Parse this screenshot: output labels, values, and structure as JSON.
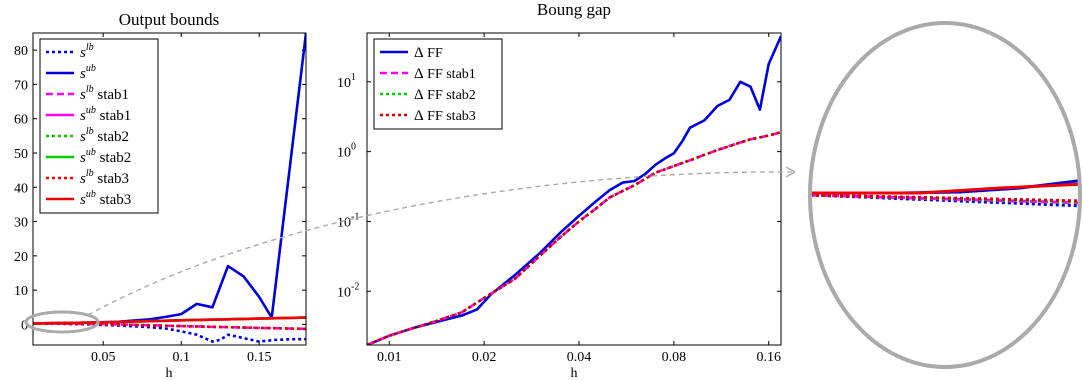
{
  "chart_data": [
    {
      "type": "line",
      "title": "Output bounds",
      "xlabel": "h",
      "ylabel": "",
      "xlim": [
        0.005,
        0.18
      ],
      "ylim": [
        -6,
        85
      ],
      "xticks": [
        0.05,
        0.1,
        0.15
      ],
      "xtick_labels": [
        "0.05",
        "0.1",
        "0.15"
      ],
      "yticks": [
        0,
        10,
        20,
        30,
        40,
        50,
        60,
        70,
        80
      ],
      "ytick_labels": [
        "0",
        "10",
        "20",
        "30",
        "40",
        "50",
        "60",
        "70",
        "80"
      ],
      "legend_position": "top-left",
      "legend": [
        {
          "base": "s",
          "sup": "lb",
          "suffix": ""
        },
        {
          "base": "s",
          "sup": "ub",
          "suffix": ""
        },
        {
          "base": "s",
          "sup": "lb",
          "suffix": " stab1"
        },
        {
          "base": "s",
          "sup": "ub",
          "suffix": " stab1"
        },
        {
          "base": "s",
          "sup": "lb",
          "suffix": " stab2"
        },
        {
          "base": "s",
          "sup": "ub",
          "suffix": " stab2"
        },
        {
          "base": "s",
          "sup": "lb",
          "suffix": " stab3"
        },
        {
          "base": "s",
          "sup": "ub",
          "suffix": " stab3"
        }
      ],
      "series": [
        {
          "color": "#0000dd",
          "dash": "dotted",
          "x": [
            0.005,
            0.02,
            0.04,
            0.06,
            0.08,
            0.09,
            0.1,
            0.11,
            0.12,
            0.125,
            0.13,
            0.14,
            0.15,
            0.16,
            0.17,
            0.18
          ],
          "y": [
            0.3,
            0.2,
            0,
            -0.3,
            -0.8,
            -1.2,
            -2,
            -3,
            -5,
            -4.5,
            -3,
            -4,
            -5,
            -4.5,
            -4.3,
            -4.3
          ]
        },
        {
          "color": "#0000dd",
          "dash": "solid",
          "x": [
            0.005,
            0.02,
            0.04,
            0.06,
            0.08,
            0.09,
            0.1,
            0.11,
            0.12,
            0.13,
            0.14,
            0.15,
            0.158,
            0.18
          ],
          "y": [
            0.3,
            0.4,
            0.5,
            0.8,
            1.5,
            2.2,
            3,
            6,
            5,
            17,
            14,
            8,
            2,
            85
          ]
        },
        {
          "color": "#ff00ff",
          "dash": "dashed",
          "x": [
            0.005,
            0.05,
            0.1,
            0.15,
            0.18
          ],
          "y": [
            0.3,
            0.1,
            -0.5,
            -1,
            -1.3
          ]
        },
        {
          "color": "#ff00ff",
          "dash": "solid",
          "x": [
            0.005,
            0.05,
            0.1,
            0.15,
            0.18
          ],
          "y": [
            0.3,
            0.6,
            1.2,
            1.7,
            2
          ]
        },
        {
          "color": "#00cc00",
          "dash": "dotted",
          "x": [
            0.005,
            0.05,
            0.1,
            0.15,
            0.18
          ],
          "y": [
            0.3,
            0.1,
            -0.5,
            -1,
            -1.3
          ]
        },
        {
          "color": "#00cc00",
          "dash": "solid",
          "x": [
            0.005,
            0.05,
            0.1,
            0.15,
            0.18
          ],
          "y": [
            0.3,
            0.6,
            1.2,
            1.7,
            2
          ]
        },
        {
          "color": "#ee0000",
          "dash": "dotted",
          "x": [
            0.005,
            0.05,
            0.1,
            0.15,
            0.18
          ],
          "y": [
            0.3,
            0.1,
            -0.5,
            -1,
            -1.3
          ]
        },
        {
          "color": "#ee0000",
          "dash": "solid",
          "x": [
            0.005,
            0.05,
            0.1,
            0.15,
            0.18
          ],
          "y": [
            0.3,
            0.6,
            1.2,
            1.7,
            2
          ]
        }
      ]
    },
    {
      "type": "line",
      "title": "Boung gap",
      "xlabel": "h",
      "ylabel": "",
      "xscale": "log",
      "yscale": "log",
      "xlim": [
        0.0085,
        0.175
      ],
      "ylim": [
        0.0017,
        50
      ],
      "xticks": [
        0.01,
        0.02,
        0.04,
        0.08,
        0.16
      ],
      "xtick_labels": [
        "0.01",
        "0.02",
        "0.04",
        "0.08",
        "0.16"
      ],
      "yticks": [
        0.01,
        0.1,
        1,
        10
      ],
      "ytick_labels": [
        {
          "base": "10",
          "exp": "-2"
        },
        {
          "base": "10",
          "exp": "-1"
        },
        {
          "base": "10",
          "exp": "0"
        },
        {
          "base": "10",
          "exp": "1"
        }
      ],
      "legend_position": "top-left",
      "legend": [
        {
          "delta": "Δ",
          "text": " FF"
        },
        {
          "delta": "Δ",
          "text": " FF stab1"
        },
        {
          "delta": "Δ",
          "text": " FF stab2"
        },
        {
          "delta": "Δ",
          "text": " FF stab3"
        }
      ],
      "series": [
        {
          "color": "#0000dd",
          "dash": "solid",
          "x": [
            0.0085,
            0.01,
            0.012,
            0.014,
            0.017,
            0.019,
            0.021,
            0.025,
            0.03,
            0.035,
            0.04,
            0.045,
            0.05,
            0.055,
            0.06,
            0.065,
            0.07,
            0.075,
            0.08,
            0.085,
            0.09,
            0.1,
            0.11,
            0.12,
            0.13,
            0.14,
            0.15,
            0.16,
            0.175
          ],
          "y": [
            0.0017,
            0.0023,
            0.003,
            0.0036,
            0.0045,
            0.0055,
            0.009,
            0.017,
            0.035,
            0.07,
            0.12,
            0.19,
            0.28,
            0.36,
            0.38,
            0.48,
            0.65,
            0.8,
            0.95,
            1.4,
            2.2,
            2.8,
            4.5,
            5.5,
            10,
            8.5,
            4,
            18,
            45
          ]
        },
        {
          "color": "#ff00ff",
          "dash": "dashed",
          "x": [
            0.0085,
            0.01,
            0.012,
            0.014,
            0.017,
            0.02,
            0.025,
            0.03,
            0.035,
            0.04,
            0.045,
            0.05,
            0.06,
            0.07,
            0.08,
            0.09,
            0.1,
            0.11,
            0.12,
            0.13,
            0.14,
            0.15,
            0.16,
            0.175
          ],
          "y": [
            0.0017,
            0.0023,
            0.003,
            0.0037,
            0.005,
            0.008,
            0.015,
            0.032,
            0.06,
            0.1,
            0.15,
            0.22,
            0.33,
            0.5,
            0.62,
            0.75,
            0.9,
            1.05,
            1.2,
            1.35,
            1.5,
            1.6,
            1.7,
            1.9
          ]
        },
        {
          "color": "#00cc00",
          "dash": "dotted",
          "x": [
            0.0085,
            0.01,
            0.012,
            0.014,
            0.017,
            0.02,
            0.025,
            0.03,
            0.035,
            0.04,
            0.045,
            0.05,
            0.06,
            0.07,
            0.08,
            0.09,
            0.1,
            0.11,
            0.12,
            0.13,
            0.14,
            0.15,
            0.16,
            0.175
          ],
          "y": [
            0.0017,
            0.0023,
            0.003,
            0.0037,
            0.005,
            0.008,
            0.015,
            0.032,
            0.06,
            0.1,
            0.15,
            0.22,
            0.33,
            0.5,
            0.62,
            0.75,
            0.9,
            1.05,
            1.2,
            1.35,
            1.5,
            1.6,
            1.7,
            1.9
          ]
        },
        {
          "color": "#cc0000",
          "dash": "dotted",
          "x": [
            0.0085,
            0.01,
            0.012,
            0.014,
            0.017,
            0.02,
            0.025,
            0.03,
            0.035,
            0.04,
            0.045,
            0.05,
            0.06,
            0.07,
            0.08,
            0.09,
            0.1,
            0.11,
            0.12,
            0.13,
            0.14,
            0.15,
            0.16,
            0.175
          ],
          "y": [
            0.0017,
            0.0023,
            0.003,
            0.0037,
            0.005,
            0.008,
            0.015,
            0.032,
            0.06,
            0.1,
            0.15,
            0.22,
            0.33,
            0.5,
            0.62,
            0.75,
            0.9,
            1.05,
            1.2,
            1.35,
            1.5,
            1.6,
            1.7,
            1.9
          ]
        }
      ]
    }
  ]
}
